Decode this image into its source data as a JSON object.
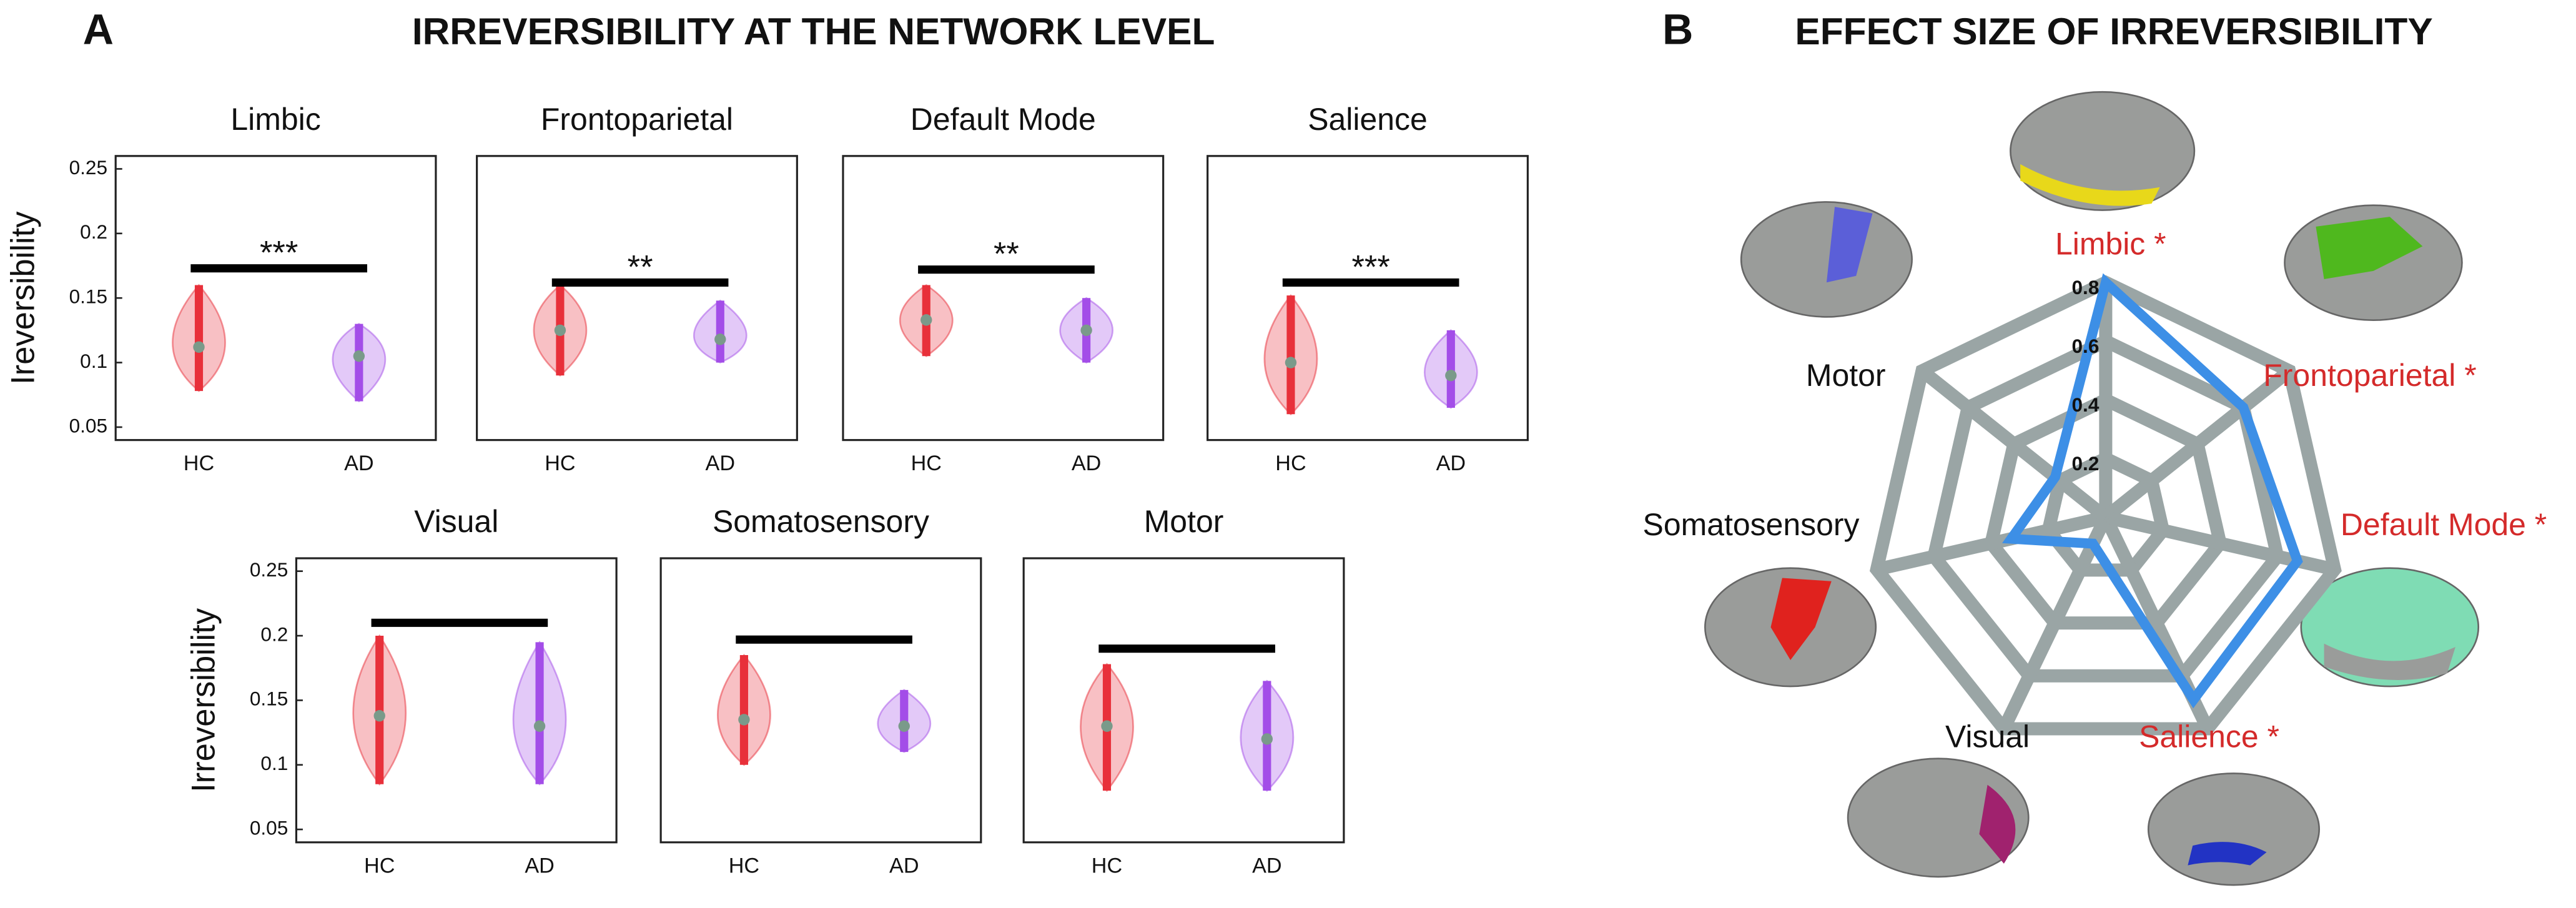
{
  "panel_a": {
    "letter": "A",
    "title": "IRREVERSIBILITY AT THE NETWORK LEVEL"
  },
  "panel_b": {
    "letter": "B",
    "title": "EFFECT SIZE OF IRREVERSIBILITY"
  },
  "chart_data": [
    {
      "type": "violin",
      "title": "Limbic",
      "ylabel": "Ireversibility",
      "categories": [
        "HC",
        "AD"
      ],
      "ylim": [
        0.04,
        0.26
      ],
      "yticks": [
        0.05,
        0.1,
        0.15,
        0.2,
        0.25
      ],
      "groups": [
        {
          "color": "#e8303a",
          "median": 0.112,
          "min": 0.078,
          "max": 0.16
        },
        {
          "color": "#a34de8",
          "median": 0.105,
          "min": 0.07,
          "max": 0.13
        }
      ],
      "significance": {
        "y": 0.173,
        "label": "***"
      }
    },
    {
      "type": "violin",
      "title": "Frontoparietal",
      "categories": [
        "HC",
        "AD"
      ],
      "ylim": [
        0.04,
        0.26
      ],
      "groups": [
        {
          "color": "#e8303a",
          "median": 0.125,
          "min": 0.09,
          "max": 0.16
        },
        {
          "color": "#a34de8",
          "median": 0.118,
          "min": 0.1,
          "max": 0.148
        }
      ],
      "significance": {
        "y": 0.162,
        "label": "**"
      }
    },
    {
      "type": "violin",
      "title": "Default Mode",
      "categories": [
        "HC",
        "AD"
      ],
      "ylim": [
        0.04,
        0.26
      ],
      "groups": [
        {
          "color": "#e8303a",
          "median": 0.133,
          "min": 0.105,
          "max": 0.16
        },
        {
          "color": "#a34de8",
          "median": 0.125,
          "min": 0.1,
          "max": 0.15
        }
      ],
      "significance": {
        "y": 0.172,
        "label": "**"
      }
    },
    {
      "type": "violin",
      "title": "Salience",
      "categories": [
        "HC",
        "AD"
      ],
      "ylim": [
        0.04,
        0.26
      ],
      "groups": [
        {
          "color": "#e8303a",
          "median": 0.1,
          "min": 0.06,
          "max": 0.152
        },
        {
          "color": "#a34de8",
          "median": 0.09,
          "min": 0.065,
          "max": 0.125
        }
      ],
      "significance": {
        "y": 0.162,
        "label": "***"
      }
    },
    {
      "type": "violin",
      "title": "Visual",
      "ylabel": "Irreversibility",
      "categories": [
        "HC",
        "AD"
      ],
      "ylim": [
        0.04,
        0.26
      ],
      "yticks": [
        0.05,
        0.1,
        0.15,
        0.2,
        0.25
      ],
      "groups": [
        {
          "color": "#e8303a",
          "median": 0.138,
          "min": 0.085,
          "max": 0.2
        },
        {
          "color": "#a34de8",
          "median": 0.13,
          "min": 0.085,
          "max": 0.195
        }
      ],
      "significance": {
        "y": 0.21
      }
    },
    {
      "type": "violin",
      "title": "Somatosensory",
      "categories": [
        "HC",
        "AD"
      ],
      "ylim": [
        0.04,
        0.26
      ],
      "groups": [
        {
          "color": "#e8303a",
          "median": 0.135,
          "min": 0.1,
          "max": 0.185
        },
        {
          "color": "#a34de8",
          "median": 0.13,
          "min": 0.11,
          "max": 0.158
        }
      ],
      "significance": {
        "y": 0.197
      }
    },
    {
      "type": "violin",
      "title": "Motor",
      "categories": [
        "HC",
        "AD"
      ],
      "ylim": [
        0.04,
        0.26
      ],
      "groups": [
        {
          "color": "#e8303a",
          "median": 0.13,
          "min": 0.08,
          "max": 0.178
        },
        {
          "color": "#a34de8",
          "median": 0.12,
          "min": 0.08,
          "max": 0.165
        }
      ],
      "significance": {
        "y": 0.19
      }
    },
    {
      "type": "radar",
      "categories": [
        "Limbic *",
        "Frontoparietal *",
        "Default Mode *",
        "Salience *",
        "Visual",
        "Somatosensory",
        "Motor"
      ],
      "category_colors": [
        "#d42a2a",
        "#d42a2a",
        "#d42a2a",
        "#d42a2a",
        "#111111",
        "#111111",
        "#111111"
      ],
      "values": [
        0.8,
        0.6,
        0.67,
        0.69,
        0.1,
        0.33,
        0.22
      ],
      "color": "#3d8fe6",
      "grid_color": "#9aa5a5",
      "ylim": [
        0,
        0.8
      ],
      "yticks": [
        0.2,
        0.4,
        0.6,
        0.8
      ]
    }
  ]
}
